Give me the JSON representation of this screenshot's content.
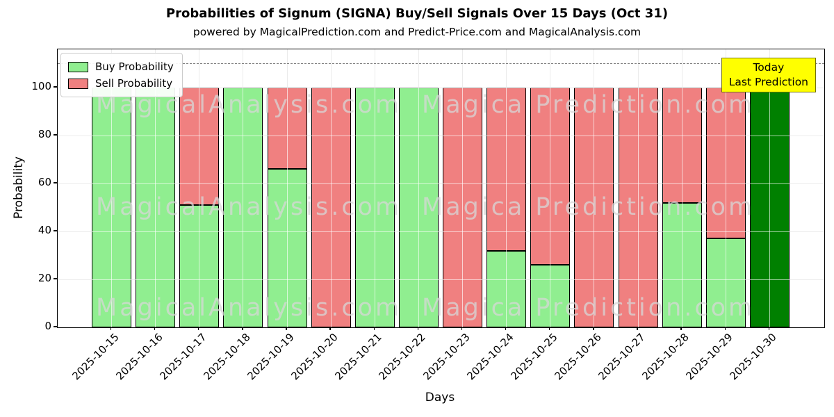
{
  "title": "Probabilities of Signum (SIGNA) Buy/Sell Signals Over 15 Days (Oct 31)",
  "subtitle": "powered by MagicalPrediction.com and Predict-Price.com and MagicalAnalysis.com",
  "legend": {
    "buy_label": "Buy Probability",
    "sell_label": "Sell Probability"
  },
  "axes": {
    "xlabel": "Days",
    "ylabel": "Probability",
    "yticks": [
      0,
      20,
      40,
      60,
      80,
      100
    ]
  },
  "annotation_box": {
    "line1": "Today",
    "line2": "Last Prediction",
    "bg_color": "#ffff00"
  },
  "watermarks": {
    "left_text": "MagicalAnalysis.com",
    "right_text": "Magica Prediction.com"
  },
  "chart_data": {
    "type": "bar",
    "stacked": true,
    "title": "Probabilities of Signum (SIGNA) Buy/Sell Signals Over 15 Days (Oct 31)",
    "xlabel": "Days",
    "ylabel": "Probability",
    "grid": true,
    "legend_position": "upper left",
    "ylim": [
      0,
      116
    ],
    "dashed_line_y": 110,
    "categories": [
      "2025-10-15",
      "2025-10-16",
      "2025-10-17",
      "2025-10-18",
      "2025-10-19",
      "2025-10-20",
      "2025-10-21",
      "2025-10-22",
      "2025-10-23",
      "2025-10-24",
      "2025-10-25",
      "2025-10-26",
      "2025-10-27",
      "2025-10-28",
      "2025-10-29",
      "2025-10-30"
    ],
    "series": [
      {
        "name": "Buy Probability",
        "color": "#90ee90",
        "values": [
          100,
          100,
          51,
          100,
          66,
          0,
          100,
          100,
          0,
          32,
          26,
          0,
          0,
          52,
          37,
          100
        ]
      },
      {
        "name": "Sell Probability",
        "color": "#f08080",
        "values": [
          0,
          0,
          49,
          0,
          34,
          100,
          0,
          0,
          100,
          68,
          74,
          100,
          100,
          48,
          63,
          0
        ]
      }
    ],
    "today_bar": {
      "category": "2025-10-30",
      "index": 15,
      "color": "#008000",
      "buy_value": 100
    },
    "colors": {
      "buy": "#90ee90",
      "sell": "#f08080",
      "today": "#008000",
      "grid": "#c6c6c6",
      "dashed_line": "#7f7f7f",
      "bar_edge": "#000000"
    }
  }
}
